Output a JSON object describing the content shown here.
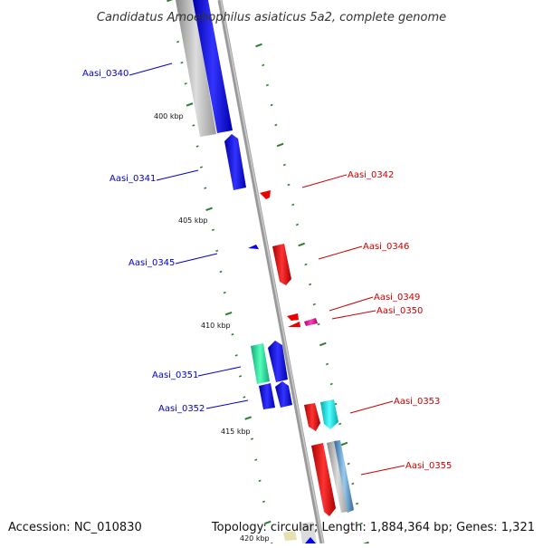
{
  "title": "Candidatus Amoebophilus asiaticus 5a2, complete genome",
  "accession": "Accession: NC_010830",
  "summary": "Topology: circular; Length: 1,884,364 bp; Genes: 1,321",
  "scale_labels": [
    "400 kbp",
    "405 kbp",
    "410 kbp",
    "415 kbp",
    "420 kbp"
  ],
  "gene_labels": [
    {
      "text": "Aasi_0340",
      "strand": "minus",
      "color": "#0000cc"
    },
    {
      "text": "Aasi_0341",
      "strand": "minus",
      "color": "#0000cc"
    },
    {
      "text": "Aasi_0342",
      "strand": "plus",
      "color": "#cc0000"
    },
    {
      "text": "Aasi_0345",
      "strand": "minus",
      "color": "#0000cc"
    },
    {
      "text": "Aasi_0346",
      "strand": "plus",
      "color": "#cc0000"
    },
    {
      "text": "Aasi_0349",
      "strand": "plus",
      "color": "#cc0000"
    },
    {
      "text": "Aasi_0350",
      "strand": "plus",
      "color": "#cc0000"
    },
    {
      "text": "Aasi_0351",
      "strand": "minus",
      "color": "#0000cc"
    },
    {
      "text": "Aasi_0352",
      "strand": "minus",
      "color": "#0000cc"
    },
    {
      "text": "Aasi_0353",
      "strand": "plus",
      "color": "#cc0000"
    },
    {
      "text": "Aasi_0355",
      "strand": "plus",
      "color": "#cc0000"
    }
  ],
  "colors": {
    "backbone": "#888888",
    "tick": "#2e7d2e",
    "minus_gene": "#0000ee",
    "plus_gene": "#ee0000",
    "rna_gene": "#bbbbbb",
    "teal_gene": "#33dd99",
    "cyan_gene": "#00dddd",
    "pink_gene": "#ee1199",
    "steel_gene": "#6699cc"
  }
}
